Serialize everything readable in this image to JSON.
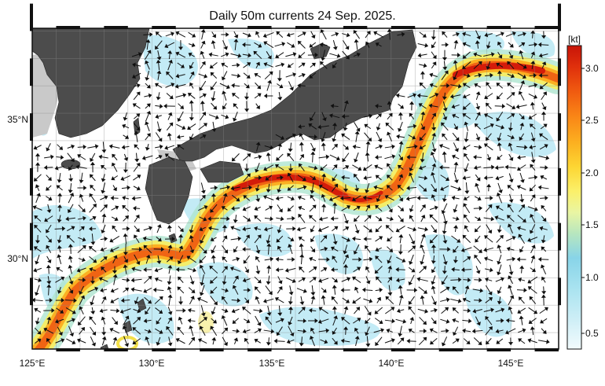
{
  "title": "Daily 50m currents 24 Sep. 2025.",
  "axes": {
    "x_ticks": [
      "125°E",
      "130°E",
      "135°E",
      "140°E",
      "145°E"
    ],
    "y_ticks": [
      "35°N",
      "30°N"
    ],
    "lon_range": [
      125,
      147
    ],
    "lat_range": [
      26.4,
      38.1
    ]
  },
  "colorbar": {
    "unit": "[kt]",
    "ticks": [
      "0.5",
      "1.0",
      "1.5",
      "2.0",
      "2.5",
      "3.0"
    ],
    "range": [
      0.25,
      3.2
    ],
    "colors": [
      "#f2fbfd",
      "#cdeef6",
      "#a9e3f0",
      "#88d4e8",
      "#b7e6bf",
      "#e9f5a3",
      "#fbf06a",
      "#fdd633",
      "#fcb020",
      "#f98416",
      "#f05a10",
      "#e0300c",
      "#c81408"
    ]
  },
  "colors": {
    "land": "#4c4c4c",
    "shelf": "#c6c6c6",
    "ocean_bg": "#ffffff",
    "current_weak": "#aee3f1",
    "current_mid": "#fbe64d",
    "current_core": "#e2300c"
  }
}
